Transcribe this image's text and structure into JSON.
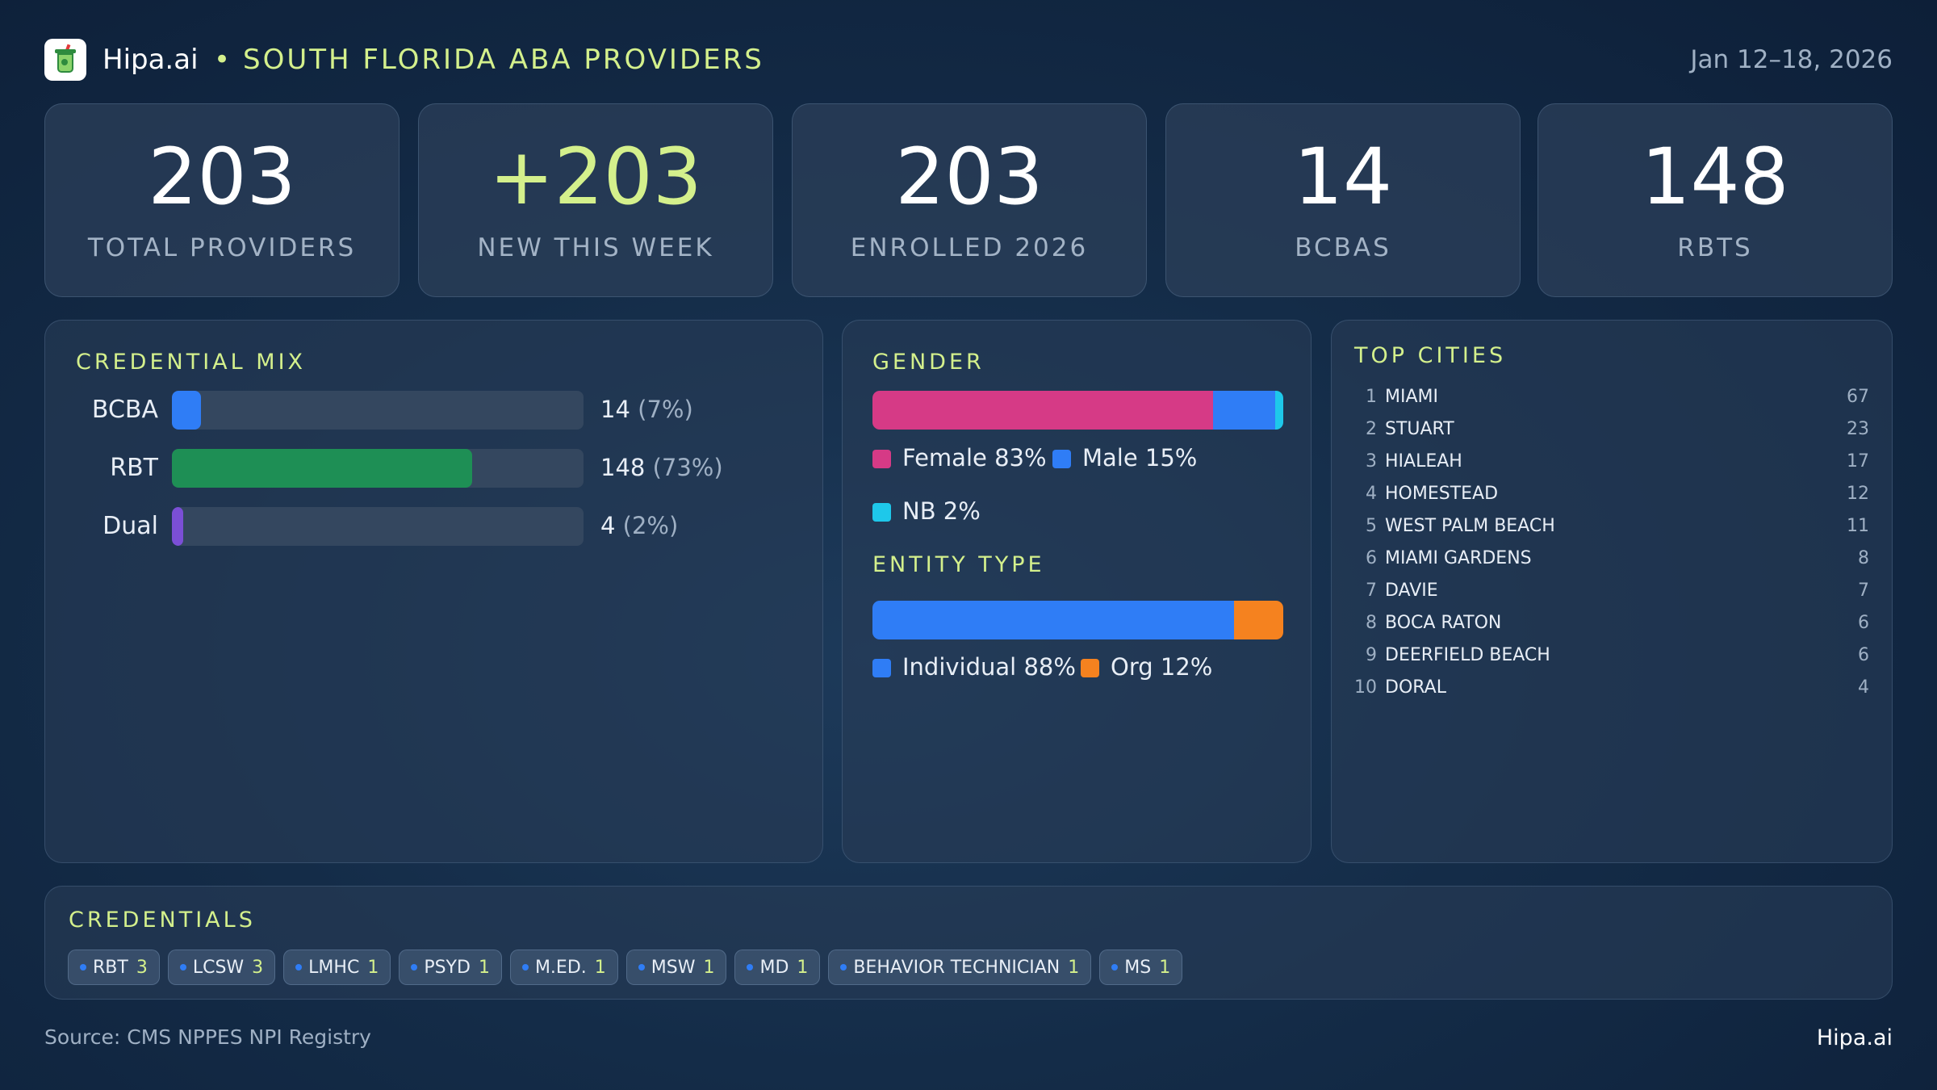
{
  "header": {
    "brand": "Hipa.ai",
    "separator": "•",
    "title": "SOUTH FLORIDA ABA PROVIDERS",
    "date_range": "Jan 12–18, 2026"
  },
  "kpis": [
    {
      "value": "203",
      "label": "TOTAL PROVIDERS"
    },
    {
      "value": "+203",
      "label": "NEW THIS WEEK"
    },
    {
      "value": "203",
      "label": "ENROLLED 2026"
    },
    {
      "value": "14",
      "label": "BCBAS"
    },
    {
      "value": "148",
      "label": "RBTS"
    }
  ],
  "credential_mix": {
    "title": "CREDENTIAL MIX",
    "rows": [
      {
        "name": "BCBA",
        "count": "14",
        "pct": "(7%)",
        "fraction": 0.07,
        "color": "#2f7df6"
      },
      {
        "name": "RBT",
        "count": "148",
        "pct": "(73%)",
        "fraction": 0.73,
        "color": "#1e8f55"
      },
      {
        "name": "Dual",
        "count": "4",
        "pct": "(2%)",
        "fraction": 0.02,
        "color": "#7b4fd6"
      }
    ]
  },
  "gender": {
    "title": "GENDER",
    "segments": [
      {
        "label": "Female 83%",
        "fraction": 0.83,
        "color": "#d63a86"
      },
      {
        "label": "Male 15%",
        "fraction": 0.15,
        "color": "#2f7df6"
      },
      {
        "label": "NB 2%",
        "fraction": 0.02,
        "color": "#1ec8ea"
      }
    ]
  },
  "entity_type": {
    "title": "ENTITY TYPE",
    "segments": [
      {
        "label": "Individual 88%",
        "fraction": 0.88,
        "color": "#2f7df6"
      },
      {
        "label": "Org 12%",
        "fraction": 0.12,
        "color": "#f5821f"
      }
    ]
  },
  "top_cities": {
    "title": "TOP CITIES",
    "items": [
      {
        "rank": "1",
        "name": "MIAMI",
        "count": "67"
      },
      {
        "rank": "2",
        "name": "STUART",
        "count": "23"
      },
      {
        "rank": "3",
        "name": "HIALEAH",
        "count": "17"
      },
      {
        "rank": "4",
        "name": "HOMESTEAD",
        "count": "12"
      },
      {
        "rank": "5",
        "name": "WEST PALM BEACH",
        "count": "11"
      },
      {
        "rank": "6",
        "name": "MIAMI GARDENS",
        "count": "8"
      },
      {
        "rank": "7",
        "name": "DAVIE",
        "count": "7"
      },
      {
        "rank": "8",
        "name": "BOCA RATON",
        "count": "6"
      },
      {
        "rank": "9",
        "name": "DEERFIELD BEACH",
        "count": "6"
      },
      {
        "rank": "10",
        "name": "DORAL",
        "count": "4"
      }
    ]
  },
  "credentials": {
    "title": "CREDENTIALS",
    "chips": [
      {
        "name": "RBT",
        "count": "3"
      },
      {
        "name": "LCSW",
        "count": "3"
      },
      {
        "name": "LMHC",
        "count": "1"
      },
      {
        "name": "PSYD",
        "count": "1"
      },
      {
        "name": "M.ED.",
        "count": "1"
      },
      {
        "name": "MSW",
        "count": "1"
      },
      {
        "name": "MD",
        "count": "1"
      },
      {
        "name": "BEHAVIOR TECHNICIAN",
        "count": "1"
      },
      {
        "name": "MS",
        "count": "1"
      }
    ]
  },
  "footer": {
    "source": "Source: CMS NPPES NPI Registry",
    "brand": "Hipa.ai"
  },
  "colors": {
    "accent": "#d4f08c",
    "chip_dot": "#2f7df6"
  }
}
